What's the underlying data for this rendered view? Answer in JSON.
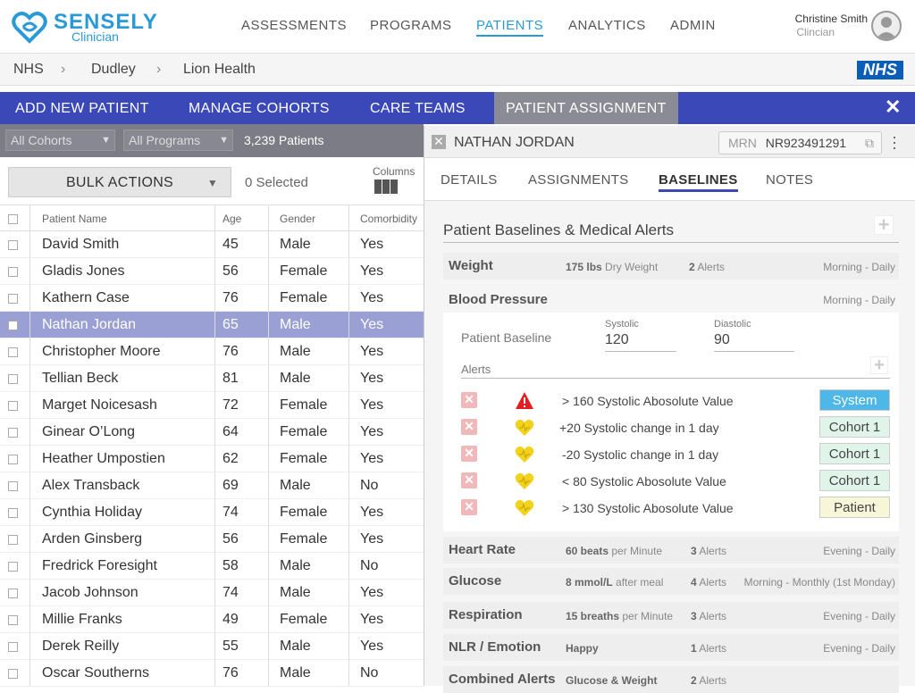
{
  "brand": {
    "name": "SENSELY",
    "sub": "Clinician"
  },
  "nav": {
    "items": [
      "ASSESSMENTS",
      "PROGRAMS",
      "PATIENTS",
      "ANALYTICS",
      "ADMIN"
    ],
    "active": "PATIENTS"
  },
  "user": {
    "name": "Christine Smith",
    "role": "Clincian"
  },
  "breadcrumb": [
    "NHS",
    "Dudley",
    "Lion Health"
  ],
  "nhs_logo": "NHS",
  "tabs": [
    "ADD NEW PATIENT",
    "MANAGE COHORTS",
    "CARE TEAMS",
    "PATIENT ASSIGNMENT"
  ],
  "filters": {
    "cohorts": "All Cohorts",
    "programs": "All Programs",
    "patient_count": "3,239 Patients"
  },
  "bulk": {
    "label": "BULK ACTIONS",
    "selected": "0 Selected",
    "columns_label": "Columns"
  },
  "table": {
    "headers": [
      "Patient Name",
      "Age",
      "Gender",
      "Comorbidity"
    ],
    "rows": [
      [
        "David Smith",
        "45",
        "Male",
        "Yes"
      ],
      [
        "Gladis Jones",
        "56",
        "Female",
        "Yes"
      ],
      [
        "Kathern Case",
        "76",
        "Female",
        "Yes"
      ],
      [
        "Nathan Jordan",
        "65",
        "Male",
        "Yes"
      ],
      [
        "Christopher Moore",
        "76",
        "Male",
        "Yes"
      ],
      [
        "Tellian Beck",
        "81",
        "Male",
        "Yes"
      ],
      [
        "Marget Noicesash",
        "72",
        "Female",
        "Yes"
      ],
      [
        "Ginear O’Long",
        "64",
        "Female",
        "Yes"
      ],
      [
        "Heather Umpostien",
        "62",
        "Female",
        "Yes"
      ],
      [
        "Alex Transback",
        "69",
        "Male",
        "No"
      ],
      [
        "Cynthia Holiday",
        "74",
        "Female",
        "Yes"
      ],
      [
        "Arden Ginsberg",
        "56",
        "Female",
        "Yes"
      ],
      [
        "Fredrick Foresight",
        "58",
        "Male",
        "No"
      ],
      [
        "Jacob Johnson",
        "74",
        "Male",
        "Yes"
      ],
      [
        "Millie Franks",
        "49",
        "Female",
        "Yes"
      ],
      [
        "Derek Reilly",
        "55",
        "Male",
        "Yes"
      ],
      [
        "Oscar Southerns",
        "76",
        "Male",
        "No"
      ]
    ],
    "selected_index": 3
  },
  "panel": {
    "patient_name": "NATHAN JORDAN",
    "mrn_label": "MRN",
    "mrn_value": "NR923491291",
    "tabs": [
      "DETAILS",
      "ASSIGNMENTS",
      "BASELINES",
      "NOTES"
    ],
    "active_tab": "BASELINES",
    "section_title": "Patient Baselines & Medical Alerts",
    "weight": {
      "name": "Weight",
      "value": "175 lbs",
      "unit": "Dry Weight",
      "alerts_n": "2",
      "alerts": "Alerts",
      "schedule": "Morning - Daily"
    },
    "blood_pressure": {
      "name": "Blood Pressure",
      "schedule": "Morning - Daily",
      "baseline_label": "Patient Baseline",
      "systolic_label": "Systolic",
      "systolic_value": "120",
      "diastolic_label": "Diastolic",
      "diastolic_value": "90",
      "alerts_label": "Alerts",
      "alerts": [
        {
          "text": "> 160 Systolic Abosolute Value",
          "badge": "System",
          "icon": "warning-icon"
        },
        {
          "text": "+20 Systolic change in 1 day",
          "badge": "Cohort 1",
          "icon": "heart-icon"
        },
        {
          "text": "-20 Systolic change in 1 day",
          "badge": "Cohort 1",
          "icon": "heart-icon"
        },
        {
          "text": "< 80 Systolic Abosolute Value",
          "badge": "Cohort 1",
          "icon": "heart-icon"
        },
        {
          "text": "> 130 Systolic Abosolute Value",
          "badge": "Patient",
          "icon": "heart-icon"
        }
      ]
    },
    "heart_rate": {
      "name": "Heart Rate",
      "value": "60 beats",
      "unit": "per Minute",
      "alerts_n": "3",
      "alerts": "Alerts",
      "schedule": "Evening - Daily"
    },
    "glucose": {
      "name": "Glucose",
      "value": "8 mmol/L",
      "unit": "after meal",
      "alerts_n": "4",
      "alerts": "Alerts",
      "schedule": "Morning - Monthly (1st Monday)"
    },
    "respiration": {
      "name": "Respiration",
      "value": "15 breaths",
      "unit": "per Minute",
      "alerts_n": "3",
      "alerts": "Alerts",
      "schedule": "Evening - Daily"
    },
    "nlr": {
      "name": "NLR / Emotion",
      "value": "Happy",
      "unit": "",
      "alerts_n": "1",
      "alerts": "Alerts",
      "schedule": "Evening - Daily"
    },
    "combined": {
      "name": "Combined Alerts",
      "value": "Glucose & Weight",
      "unit": "",
      "alerts_n": "2",
      "alerts": "Alerts",
      "schedule": ""
    }
  },
  "colors": {
    "accent": "#2a9ad6",
    "tabbar": "#3a48b8",
    "selected_row": "#9aa0d4",
    "badge_system": "#4db8e8",
    "badge_cohort": "#e0f4ea",
    "badge_patient": "#f8f6d8"
  }
}
